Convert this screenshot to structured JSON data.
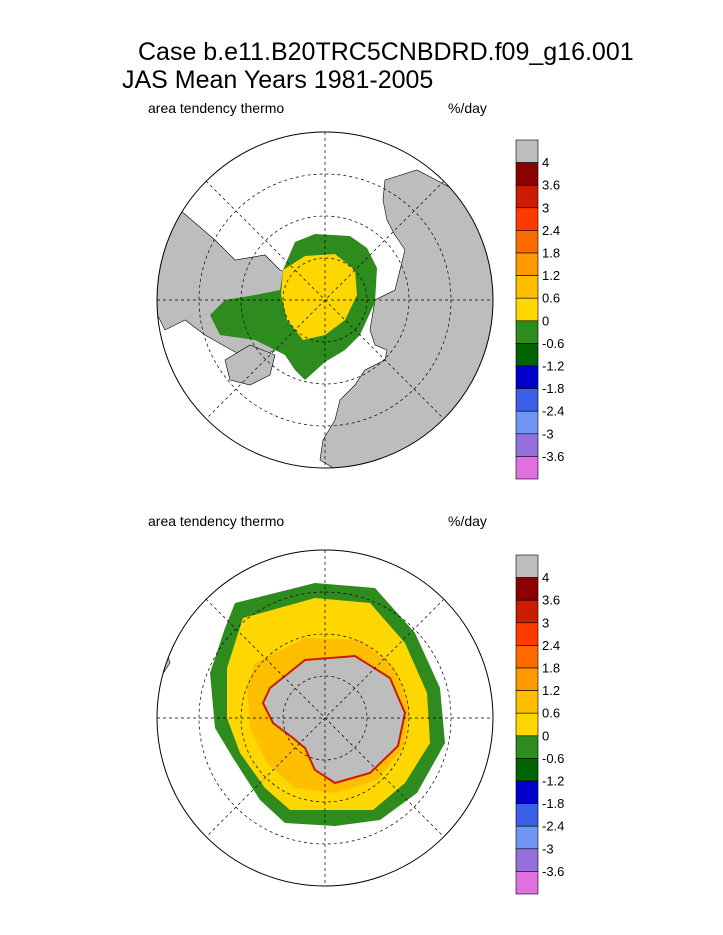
{
  "title": {
    "line1": "Case b.e11.B20TRC5CNBDRD.f09_g16.001",
    "line2": "JAS Mean   Years 1981-2005"
  },
  "panels": [
    {
      "left_label": "area tendency thermo",
      "right_label": "%/day",
      "hemisphere": "north"
    },
    {
      "left_label": "area tendency thermo",
      "right_label": "%/day",
      "hemisphere": "south"
    }
  ],
  "colorbar": {
    "land_color": "#bdbdbd",
    "colors": [
      "#bdbdbd",
      "#8b0000",
      "#cc1c00",
      "#ff3a00",
      "#ff6a00",
      "#ff9900",
      "#ffbe00",
      "#ffd700",
      "#2e8b1e",
      "#006400",
      "#0000cd",
      "#3b5fe6",
      "#6f96f5",
      "#9370db",
      "#e070e0"
    ],
    "labels": [
      "4",
      "3.6",
      "3",
      "2.4",
      "1.8",
      "1.2",
      "0.6",
      "0",
      "-0.6",
      "-1.2",
      "-1.8",
      "-2.4",
      "-3",
      "-3.6"
    ]
  }
}
